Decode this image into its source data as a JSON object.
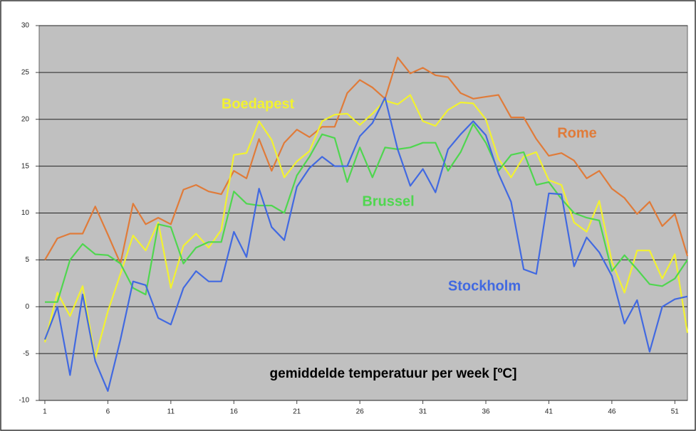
{
  "chart_data": {
    "type": "line",
    "title": "gemiddelde temperatuur per week [ºC]",
    "x": [
      1,
      2,
      3,
      4,
      5,
      6,
      7,
      8,
      9,
      10,
      11,
      12,
      13,
      14,
      15,
      16,
      17,
      18,
      19,
      20,
      21,
      22,
      23,
      24,
      25,
      26,
      27,
      28,
      29,
      30,
      31,
      32,
      33,
      34,
      35,
      36,
      37,
      38,
      39,
      40,
      41,
      42,
      43,
      44,
      45,
      46,
      47,
      48,
      49,
      50,
      51,
      52
    ],
    "series": [
      {
        "name": "Rome",
        "color": "#e07b39",
        "values": [
          5,
          7.3,
          7.8,
          7.8,
          10.7,
          7.7,
          4.6,
          11,
          8.8,
          9.5,
          8.8,
          12.5,
          13,
          12.3,
          12,
          14.5,
          13.7,
          17.9,
          14.5,
          17.5,
          18.9,
          18.1,
          19.2,
          19.2,
          22.8,
          24.2,
          23.4,
          22.2,
          26.6,
          24.9,
          25.5,
          24.7,
          24.5,
          22.8,
          22.2,
          22.4,
          22.6,
          20.2,
          20.2,
          17.9,
          16.1,
          16.4,
          15.6,
          13.7,
          14.5,
          12.6,
          11.6,
          9.9,
          11.2,
          8.6,
          9.9,
          5.4
        ]
      },
      {
        "name": "Boedapest",
        "color": "#f2f230",
        "values": [
          -3.8,
          1.5,
          -1,
          2.2,
          -5.5,
          -0.5,
          3.5,
          7.6,
          6,
          9,
          2,
          6.5,
          7.8,
          6.3,
          8.2,
          16.2,
          16.4,
          19.8,
          17.8,
          13.8,
          15.5,
          16.6,
          19.8,
          20.5,
          20.6,
          19.4,
          20.6,
          22,
          21.6,
          22.6,
          19.8,
          19.3,
          21,
          21.8,
          21.7,
          20,
          15.8,
          13.8,
          16,
          16.5,
          13.5,
          13,
          9,
          8,
          11.3,
          4.8,
          1.5,
          6,
          6,
          3,
          5.6,
          -2.8
        ]
      },
      {
        "name": "Brussel",
        "color": "#4fd64f",
        "values": [
          0.5,
          0.5,
          5,
          6.7,
          5.6,
          5.5,
          4.6,
          2,
          1.3,
          8.8,
          8.5,
          4.6,
          6.3,
          6.9,
          6.9,
          12.3,
          11,
          10.8,
          10.8,
          10,
          14,
          16,
          18.4,
          18,
          13.3,
          17,
          13.8,
          17,
          16.8,
          17,
          17.5,
          17.5,
          14.5,
          16.5,
          19.5,
          17.5,
          14.5,
          16.2,
          16.5,
          13,
          13.3,
          11.5,
          10,
          9.5,
          9.2,
          3.8,
          5.5,
          4,
          2.4,
          2.2,
          3,
          5
        ]
      },
      {
        "name": "Stockholm",
        "color": "#4169e1",
        "values": [
          -3.5,
          0,
          -7.3,
          1.3,
          -5.8,
          -9,
          -3.5,
          2.7,
          2.3,
          -1.2,
          -1.9,
          2,
          3.8,
          2.7,
          2.7,
          8,
          5.3,
          12.6,
          8.5,
          7.1,
          12.8,
          14.8,
          16,
          15,
          15,
          18.2,
          19.6,
          22.3,
          16.8,
          12.9,
          14.7,
          12.2,
          16.8,
          18.4,
          19.8,
          18.3,
          14.2,
          11.2,
          4,
          3.5,
          12.1,
          12,
          4.3,
          7.4,
          5.8,
          3.3,
          -1.8,
          0.7,
          -4.8,
          0,
          0.8,
          1.1
        ]
      }
    ],
    "xlim": [
      0.55,
      52
    ],
    "xticks": [
      1,
      6,
      11,
      16,
      21,
      26,
      31,
      36,
      41,
      46,
      51
    ],
    "ylim": [
      -10,
      30
    ],
    "yticks": [
      30,
      25,
      20,
      15,
      10,
      5,
      0,
      -5,
      -10
    ],
    "grid": true,
    "background": "#c0c0c0"
  }
}
